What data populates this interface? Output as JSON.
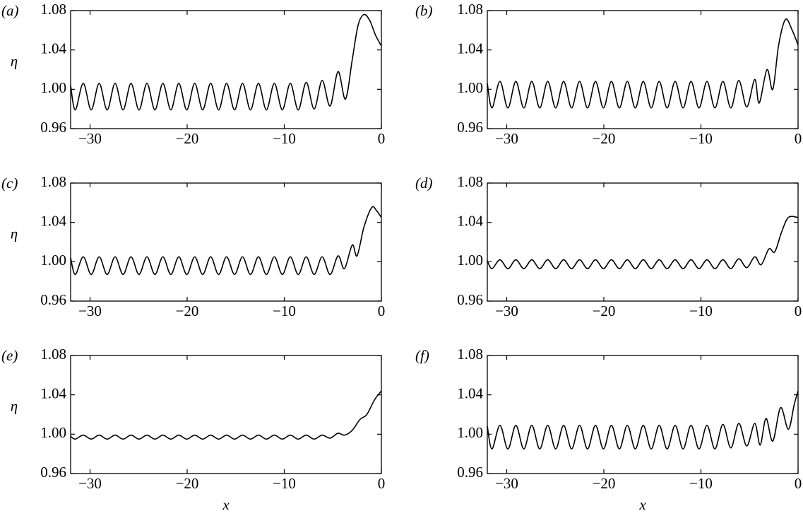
{
  "chart_data": [
    {
      "type": "line",
      "panel_label": "(a)",
      "ylabel": "η",
      "color": "#000000",
      "xlim": [
        -32,
        0
      ],
      "ylim": [
        0.96,
        1.08
      ],
      "xticks": [
        {
          "value": -30,
          "label": "−30"
        },
        {
          "value": -20,
          "label": "−20"
        },
        {
          "value": -10,
          "label": "−10"
        },
        0
      ],
      "yticks": [
        0.96,
        {
          "value": 1.0,
          "label": "1.00"
        },
        1.04,
        1.08
      ],
      "x": [
        -32,
        -31.52,
        -30.7,
        -29.88,
        -29.06,
        -28.24,
        -27.42,
        -26.6,
        -25.78,
        -24.96,
        -24.14,
        -23.32,
        -22.5,
        -21.68,
        -20.86,
        -20.04,
        -19.22,
        -18.4,
        -17.58,
        -16.76,
        -15.94,
        -15.12,
        -14.3,
        -13.48,
        -12.66,
        -11.84,
        -11.02,
        -10.2,
        -9.38,
        -8.56,
        -7.74,
        -6.92,
        -6.1,
        -5.28,
        -4.46,
        -3.7,
        -3.0,
        -2.4,
        -1.8,
        -1.2,
        -0.6,
        0
      ],
      "values": [
        1.004,
        0.979,
        1.006,
        0.979,
        1.006,
        0.979,
        1.006,
        0.979,
        1.006,
        0.979,
        1.006,
        0.979,
        1.006,
        0.979,
        1.006,
        0.979,
        1.006,
        0.979,
        1.006,
        0.979,
        1.006,
        0.979,
        1.006,
        0.979,
        1.006,
        0.979,
        1.006,
        0.979,
        1.006,
        0.979,
        1.007,
        0.98,
        1.009,
        0.983,
        1.018,
        0.99,
        1.03,
        1.065,
        1.076,
        1.07,
        1.055,
        1.044
      ]
    },
    {
      "type": "line",
      "panel_label": "(b)",
      "color": "#000000",
      "xlim": [
        -32,
        0
      ],
      "ylim": [
        0.96,
        1.08
      ],
      "xticks": [
        {
          "value": -30,
          "label": "−30"
        },
        {
          "value": -20,
          "label": "−20"
        },
        {
          "value": -10,
          "label": "−10"
        },
        0
      ],
      "yticks": [
        0.96,
        {
          "value": 1.0,
          "label": "1.00"
        },
        1.04,
        1.08
      ],
      "x": [
        -32,
        -31.52,
        -30.7,
        -29.88,
        -29.06,
        -28.24,
        -27.42,
        -26.6,
        -25.78,
        -24.96,
        -24.14,
        -23.32,
        -22.5,
        -21.68,
        -20.86,
        -20.04,
        -19.22,
        -18.4,
        -17.58,
        -16.76,
        -15.94,
        -15.12,
        -14.3,
        -13.48,
        -12.66,
        -11.84,
        -11.02,
        -10.2,
        -9.38,
        -8.56,
        -7.74,
        -6.92,
        -6.1,
        -5.28,
        -4.46,
        -4.0,
        -3.2,
        -2.6,
        -2.0,
        -1.3,
        -0.6,
        0
      ],
      "values": [
        1.006,
        0.981,
        1.008,
        0.981,
        1.008,
        0.981,
        1.008,
        0.981,
        1.008,
        0.981,
        1.008,
        0.981,
        1.008,
        0.981,
        1.008,
        0.981,
        1.008,
        0.981,
        1.008,
        0.981,
        1.008,
        0.981,
        1.008,
        0.981,
        1.008,
        0.981,
        1.008,
        0.981,
        1.008,
        0.981,
        1.008,
        0.981,
        1.009,
        0.982,
        1.01,
        0.986,
        1.02,
        1.0,
        1.045,
        1.071,
        1.06,
        1.045
      ]
    },
    {
      "type": "line",
      "panel_label": "(c)",
      "ylabel": "η",
      "color": "#000000",
      "xlim": [
        -32,
        0
      ],
      "ylim": [
        0.96,
        1.08
      ],
      "xticks": [
        {
          "value": -30,
          "label": "−30"
        },
        {
          "value": -20,
          "label": "−20"
        },
        {
          "value": -10,
          "label": "−10"
        },
        0
      ],
      "yticks": [
        0.96,
        {
          "value": 1.0,
          "label": "1.00"
        },
        1.04,
        1.08
      ],
      "x": [
        -32,
        -31.52,
        -30.7,
        -29.88,
        -29.06,
        -28.24,
        -27.42,
        -26.6,
        -25.78,
        -24.96,
        -24.14,
        -23.32,
        -22.5,
        -21.68,
        -20.86,
        -20.04,
        -19.22,
        -18.4,
        -17.58,
        -16.76,
        -15.94,
        -15.12,
        -14.3,
        -13.48,
        -12.66,
        -11.84,
        -11.02,
        -10.2,
        -9.38,
        -8.56,
        -7.74,
        -6.92,
        -6.1,
        -5.28,
        -4.46,
        -3.8,
        -3.0,
        -2.5,
        -1.8,
        -1.0,
        -0.5,
        0
      ],
      "values": [
        1.004,
        0.987,
        1.005,
        0.987,
        1.005,
        0.987,
        1.005,
        0.987,
        1.005,
        0.987,
        1.005,
        0.987,
        1.005,
        0.987,
        1.005,
        0.987,
        1.005,
        0.987,
        1.005,
        0.987,
        1.005,
        0.987,
        1.005,
        0.987,
        1.005,
        0.987,
        1.005,
        0.987,
        1.005,
        0.987,
        1.005,
        0.987,
        1.005,
        0.987,
        1.006,
        0.993,
        1.017,
        1.006,
        1.035,
        1.055,
        1.052,
        1.045
      ]
    },
    {
      "type": "line",
      "panel_label": "(d)",
      "color": "#000000",
      "xlim": [
        -32,
        0
      ],
      "ylim": [
        0.96,
        1.08
      ],
      "xticks": [
        {
          "value": -30,
          "label": "−30"
        },
        {
          "value": -20,
          "label": "−20"
        },
        {
          "value": -10,
          "label": "−10"
        },
        0
      ],
      "yticks": [
        0.96,
        {
          "value": 1.0,
          "label": "1.00"
        },
        1.04,
        1.08
      ],
      "x": [
        -32,
        -31.52,
        -30.7,
        -29.88,
        -29.06,
        -28.24,
        -27.42,
        -26.6,
        -25.78,
        -24.96,
        -24.14,
        -23.32,
        -22.5,
        -21.68,
        -20.86,
        -20.04,
        -19.22,
        -18.4,
        -17.58,
        -16.76,
        -15.94,
        -15.12,
        -14.3,
        -13.48,
        -12.66,
        -11.84,
        -11.02,
        -10.2,
        -9.38,
        -8.56,
        -7.74,
        -6.92,
        -6.1,
        -5.28,
        -4.46,
        -3.8,
        -3.0,
        -2.4,
        -1.7,
        -1.0,
        0
      ],
      "values": [
        1.001,
        0.993,
        1.002,
        0.993,
        1.002,
        0.993,
        1.002,
        0.993,
        1.002,
        0.993,
        1.002,
        0.993,
        1.002,
        0.993,
        1.002,
        0.993,
        1.002,
        0.993,
        1.002,
        0.993,
        1.002,
        0.993,
        1.002,
        0.993,
        1.002,
        0.993,
        1.002,
        0.993,
        1.002,
        0.993,
        1.002,
        0.993,
        1.003,
        0.994,
        1.005,
        0.997,
        1.013,
        1.01,
        1.03,
        1.045,
        1.045
      ]
    },
    {
      "type": "line",
      "panel_label": "(e)",
      "ylabel": "η",
      "xlabel": "x",
      "color": "#000000",
      "xlim": [
        -32,
        0
      ],
      "ylim": [
        0.96,
        1.08
      ],
      "xticks": [
        {
          "value": -30,
          "label": "−30"
        },
        {
          "value": -20,
          "label": "−20"
        },
        {
          "value": -10,
          "label": "−10"
        },
        0
      ],
      "yticks": [
        0.96,
        {
          "value": 1.0,
          "label": "1.00"
        },
        1.04,
        1.08
      ],
      "x": [
        -32,
        -31.52,
        -30.7,
        -29.88,
        -29.06,
        -28.24,
        -27.42,
        -26.6,
        -25.78,
        -24.96,
        -24.14,
        -23.32,
        -22.5,
        -21.68,
        -20.86,
        -20.04,
        -19.22,
        -18.4,
        -17.58,
        -16.76,
        -15.94,
        -15.12,
        -14.3,
        -13.48,
        -12.66,
        -11.84,
        -11.02,
        -10.2,
        -9.38,
        -8.56,
        -7.74,
        -6.92,
        -6.1,
        -5.28,
        -4.46,
        -3.8,
        -3.0,
        -2.2,
        -1.5,
        -0.7,
        0
      ],
      "values": [
        0.998,
        0.995,
        0.999,
        0.995,
        0.999,
        0.995,
        0.999,
        0.995,
        0.999,
        0.995,
        0.999,
        0.995,
        0.999,
        0.995,
        0.999,
        0.995,
        0.999,
        0.995,
        0.999,
        0.995,
        0.999,
        0.995,
        0.999,
        0.995,
        0.999,
        0.995,
        0.999,
        0.995,
        0.999,
        0.995,
        0.999,
        0.995,
        0.999,
        0.996,
        1.001,
        0.999,
        1.004,
        1.015,
        1.02,
        1.035,
        1.044
      ]
    },
    {
      "type": "line",
      "panel_label": "(f)",
      "xlabel": "x",
      "color": "#000000",
      "xlim": [
        -32,
        0
      ],
      "ylim": [
        0.96,
        1.08
      ],
      "xticks": [
        {
          "value": -30,
          "label": "−30"
        },
        {
          "value": -20,
          "label": "−20"
        },
        {
          "value": -10,
          "label": "−10"
        },
        0
      ],
      "yticks": [
        0.96,
        {
          "value": 1.0,
          "label": "1.00"
        },
        1.04,
        1.08
      ],
      "x": [
        -32,
        -31.52,
        -30.7,
        -29.88,
        -29.06,
        -28.24,
        -27.42,
        -26.6,
        -25.78,
        -24.96,
        -24.14,
        -23.32,
        -22.5,
        -21.68,
        -20.86,
        -20.04,
        -19.22,
        -18.4,
        -17.58,
        -16.76,
        -15.94,
        -15.12,
        -14.3,
        -13.48,
        -12.66,
        -11.84,
        -11.02,
        -10.2,
        -9.38,
        -8.56,
        -7.74,
        -6.92,
        -6.1,
        -5.28,
        -4.46,
        -3.9,
        -3.3,
        -2.6,
        -1.8,
        -1.0,
        -0.4,
        0
      ],
      "values": [
        1.008,
        0.985,
        1.009,
        0.985,
        1.009,
        0.985,
        1.009,
        0.985,
        1.009,
        0.985,
        1.009,
        0.985,
        1.009,
        0.985,
        1.009,
        0.985,
        1.009,
        0.985,
        1.009,
        0.985,
        1.009,
        0.985,
        1.009,
        0.985,
        1.009,
        0.985,
        1.009,
        0.985,
        1.009,
        0.985,
        1.01,
        0.986,
        1.011,
        0.988,
        1.011,
        0.989,
        1.016,
        0.993,
        1.027,
        1.005,
        1.03,
        1.044
      ]
    }
  ]
}
